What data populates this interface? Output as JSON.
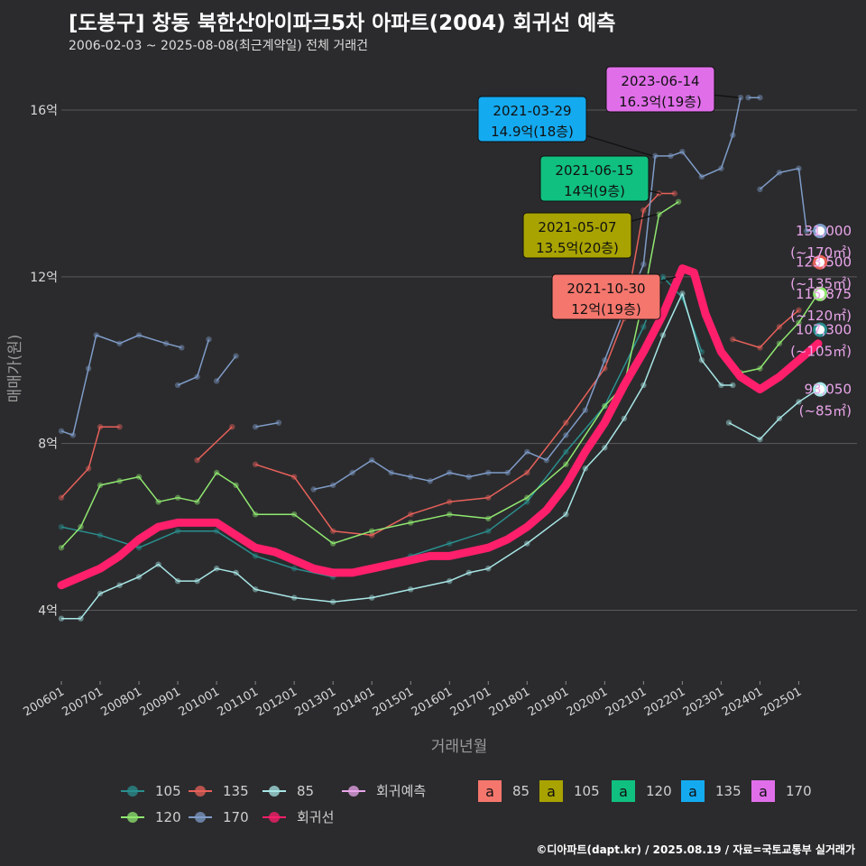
{
  "title": "[도봉구] 창동 북한산아이파크5차 아파트(2004) 회귀선 예측",
  "subtitle": "2006-02-03 ~ 2025-08-08(최근계약일) 전체 거래건",
  "caption": "©디아파트(dapt.kr) / 2025.08.19 / 자료=국토교통부 실거래가",
  "chart_data": {
    "type": "line",
    "xlabel": "거래년월",
    "ylabel": "매매가(원)",
    "x_ticks": [
      "200601",
      "200701",
      "200801",
      "200901",
      "201001",
      "201101",
      "201201",
      "201301",
      "201401",
      "201501",
      "201601",
      "201701",
      "201801",
      "201901",
      "202001",
      "202101",
      "202201",
      "202301",
      "202401",
      "202501"
    ],
    "y_ticks": [
      {
        "v": 4,
        "label": "4억"
      },
      {
        "v": 8,
        "label": "8억"
      },
      {
        "v": 12,
        "label": "12억"
      },
      {
        "v": 16,
        "label": "16억"
      }
    ],
    "xlim": [
      2006.0,
      2026.5
    ],
    "ylim": [
      2.3,
      17.3
    ],
    "grid": true,
    "colors": {
      "s105": "#2a8f8f",
      "s135": "#e8615a",
      "s85": "#a8e6e6",
      "s120": "#90e870",
      "s170": "#7f9cc8",
      "regression": "#ff1f6b",
      "forecast": "#e9a5ea"
    },
    "series": [
      {
        "name": "105",
        "color": "#2a8f8f",
        "points": [
          [
            2006.0,
            6.0
          ],
          [
            2007.0,
            5.8
          ],
          [
            2008.0,
            5.5
          ],
          [
            2009.0,
            5.9
          ],
          [
            2010.0,
            5.9
          ],
          [
            2011.0,
            5.3
          ],
          [
            2012.0,
            5.0
          ],
          [
            2013.0,
            4.8
          ],
          [
            2014.0,
            5.0
          ],
          [
            2015.0,
            5.3
          ],
          [
            2016.0,
            5.6
          ],
          [
            2017.0,
            5.9
          ],
          [
            2018.0,
            6.6
          ],
          [
            2019.0,
            7.8
          ],
          [
            2020.0,
            8.9
          ],
          [
            2021.0,
            10.8
          ],
          [
            2021.5,
            12.0
          ],
          [
            2022.0,
            11.5
          ],
          [
            2022.5,
            10.2
          ]
        ]
      },
      {
        "name": "135",
        "color": "#e8615a",
        "points": [
          [
            2006.0,
            6.7
          ],
          [
            2006.7,
            7.4
          ],
          [
            2007.0,
            8.4
          ],
          [
            2007.5,
            8.4
          ],
          [
            null,
            null
          ],
          [
            2009.5,
            7.6
          ],
          [
            2010.4,
            8.4
          ],
          [
            null,
            null
          ],
          [
            2011.0,
            7.5
          ],
          [
            2012.0,
            7.2
          ],
          [
            2013.0,
            5.9
          ],
          [
            2014.0,
            5.8
          ],
          [
            2015.0,
            6.3
          ],
          [
            2016.0,
            6.6
          ],
          [
            2017.0,
            6.7
          ],
          [
            2018.0,
            7.3
          ],
          [
            2019.0,
            8.5
          ],
          [
            2020.0,
            9.8
          ],
          [
            2020.5,
            11.0
          ],
          [
            2021.0,
            13.6
          ],
          [
            2021.4,
            14.0
          ],
          [
            2021.8,
            14.0
          ],
          [
            null,
            null
          ],
          [
            2023.3,
            10.5
          ],
          [
            2024.0,
            10.3
          ],
          [
            2024.5,
            10.8
          ],
          [
            2025.0,
            11.2
          ],
          [
            null,
            null
          ],
          [
            2025.4,
            12.3
          ],
          [
            2025.7,
            12.4
          ]
        ]
      },
      {
        "name": "85",
        "color": "#a8e6e6",
        "points": [
          [
            2006.0,
            3.8
          ],
          [
            2006.5,
            3.8
          ],
          [
            2007.0,
            4.4
          ],
          [
            2007.5,
            4.6
          ],
          [
            2008.0,
            4.8
          ],
          [
            2008.5,
            5.1
          ],
          [
            2009.0,
            4.7
          ],
          [
            2009.5,
            4.7
          ],
          [
            2010.0,
            5.0
          ],
          [
            2010.5,
            4.9
          ],
          [
            2011.0,
            4.5
          ],
          [
            2012.0,
            4.3
          ],
          [
            2013.0,
            4.2
          ],
          [
            2014.0,
            4.3
          ],
          [
            2015.0,
            4.5
          ],
          [
            2016.0,
            4.7
          ],
          [
            2016.5,
            4.9
          ],
          [
            2017.0,
            5.0
          ],
          [
            2018.0,
            5.6
          ],
          [
            2019.0,
            6.3
          ],
          [
            2019.5,
            7.4
          ],
          [
            2020.0,
            7.9
          ],
          [
            2020.5,
            8.6
          ],
          [
            2021.0,
            9.4
          ],
          [
            2021.5,
            10.6
          ],
          [
            2022.0,
            11.6
          ],
          [
            2022.5,
            10.0
          ],
          [
            2023.0,
            9.4
          ],
          [
            2023.3,
            9.4
          ],
          [
            null,
            null
          ],
          [
            2023.2,
            8.5
          ],
          [
            2024.0,
            8.1
          ],
          [
            2024.5,
            8.6
          ],
          [
            2025.0,
            9.0
          ],
          [
            2025.5,
            9.3
          ]
        ]
      },
      {
        "name": "120",
        "color": "#90e870",
        "points": [
          [
            2006.0,
            5.5
          ],
          [
            2006.5,
            6.0
          ],
          [
            2007.0,
            7.0
          ],
          [
            2007.5,
            7.1
          ],
          [
            2008.0,
            7.2
          ],
          [
            2008.5,
            6.6
          ],
          [
            2009.0,
            6.7
          ],
          [
            2009.5,
            6.6
          ],
          [
            2010.0,
            7.3
          ],
          [
            2010.5,
            7.0
          ],
          [
            2011.0,
            6.3
          ],
          [
            2012.0,
            6.3
          ],
          [
            2013.0,
            5.6
          ],
          [
            2014.0,
            5.9
          ],
          [
            2015.0,
            6.1
          ],
          [
            2016.0,
            6.3
          ],
          [
            2017.0,
            6.2
          ],
          [
            2018.0,
            6.7
          ],
          [
            2019.0,
            7.5
          ],
          [
            2020.0,
            8.9
          ],
          [
            2020.5,
            9.4
          ],
          [
            2021.0,
            11.5
          ],
          [
            2021.4,
            13.5
          ],
          [
            2021.9,
            13.8
          ],
          [
            null,
            null
          ],
          [
            2023.5,
            9.7
          ],
          [
            2024.0,
            9.8
          ],
          [
            2024.5,
            10.4
          ],
          [
            2025.0,
            10.9
          ],
          [
            2025.5,
            11.6
          ]
        ]
      },
      {
        "name": "170",
        "color": "#7f9cc8",
        "points": [
          [
            2006.0,
            8.3
          ],
          [
            2006.3,
            8.2
          ],
          [
            2006.7,
            9.8
          ],
          [
            2006.9,
            10.6
          ],
          [
            2007.5,
            10.4
          ],
          [
            2008.0,
            10.6
          ],
          [
            2008.7,
            10.4
          ],
          [
            2009.1,
            10.3
          ],
          [
            null,
            null
          ],
          [
            2009.0,
            9.4
          ],
          [
            2009.5,
            9.6
          ],
          [
            2009.8,
            10.5
          ],
          [
            null,
            null
          ],
          [
            2010.0,
            9.5
          ],
          [
            2010.5,
            10.1
          ],
          [
            null,
            null
          ],
          [
            2011.0,
            8.4
          ],
          [
            2011.6,
            8.5
          ],
          [
            null,
            null
          ],
          [
            2012.5,
            6.9
          ],
          [
            2013.0,
            7.0
          ],
          [
            2013.5,
            7.3
          ],
          [
            2014.0,
            7.6
          ],
          [
            2014.5,
            7.3
          ],
          [
            2015.0,
            7.2
          ],
          [
            2015.5,
            7.1
          ],
          [
            2016.0,
            7.3
          ],
          [
            2016.5,
            7.2
          ],
          [
            2017.0,
            7.3
          ],
          [
            2017.5,
            7.3
          ],
          [
            2018.0,
            7.8
          ],
          [
            2018.5,
            7.6
          ],
          [
            2019.0,
            8.2
          ],
          [
            2019.5,
            8.8
          ],
          [
            2020.0,
            10.0
          ],
          [
            2020.5,
            11.2
          ],
          [
            2021.0,
            12.3
          ],
          [
            2021.3,
            14.9
          ],
          [
            2021.7,
            14.9
          ],
          [
            2022.0,
            15.0
          ],
          [
            2022.5,
            14.4
          ],
          [
            2023.0,
            14.6
          ],
          [
            2023.3,
            15.4
          ],
          [
            2023.5,
            16.3
          ],
          [
            null,
            null
          ],
          [
            2023.7,
            16.3
          ],
          [
            2024.0,
            16.3
          ],
          [
            null,
            null
          ],
          [
            2024.0,
            14.1
          ],
          [
            2024.5,
            14.5
          ],
          [
            2025.0,
            14.6
          ],
          [
            2025.2,
            13.1
          ],
          [
            2025.5,
            13.1
          ]
        ]
      },
      {
        "name": "회귀선",
        "color": "#ff1f6b",
        "regression": true,
        "points": [
          [
            2006.0,
            4.6
          ],
          [
            2006.5,
            4.8
          ],
          [
            2007.0,
            5.0
          ],
          [
            2007.5,
            5.3
          ],
          [
            2008.0,
            5.7
          ],
          [
            2008.5,
            6.0
          ],
          [
            2009.0,
            6.1
          ],
          [
            2009.5,
            6.1
          ],
          [
            2010.0,
            6.1
          ],
          [
            2010.5,
            5.8
          ],
          [
            2011.0,
            5.5
          ],
          [
            2011.5,
            5.4
          ],
          [
            2012.0,
            5.2
          ],
          [
            2012.5,
            5.0
          ],
          [
            2013.0,
            4.9
          ],
          [
            2013.5,
            4.9
          ],
          [
            2014.0,
            5.0
          ],
          [
            2014.5,
            5.1
          ],
          [
            2015.0,
            5.2
          ],
          [
            2015.5,
            5.3
          ],
          [
            2016.0,
            5.3
          ],
          [
            2016.5,
            5.4
          ],
          [
            2017.0,
            5.5
          ],
          [
            2017.5,
            5.7
          ],
          [
            2018.0,
            6.0
          ],
          [
            2018.5,
            6.4
          ],
          [
            2019.0,
            7.0
          ],
          [
            2019.5,
            7.8
          ],
          [
            2020.0,
            8.5
          ],
          [
            2020.5,
            9.4
          ],
          [
            2021.0,
            10.2
          ],
          [
            2021.5,
            11.1
          ],
          [
            2022.0,
            12.2
          ],
          [
            2022.3,
            12.1
          ],
          [
            2022.6,
            11.1
          ],
          [
            2023.0,
            10.2
          ],
          [
            2023.5,
            9.6
          ],
          [
            2024.0,
            9.3
          ],
          [
            2024.5,
            9.6
          ],
          [
            2025.0,
            10.0
          ],
          [
            2025.5,
            10.4
          ]
        ]
      }
    ],
    "forecast_points": [
      {
        "x": 2025.55,
        "y": 13.1,
        "color": "#7f9cc8"
      },
      {
        "x": 2025.55,
        "y": 12.35,
        "color": "#e8615a"
      },
      {
        "x": 2025.55,
        "y": 11.59,
        "color": "#90e870"
      },
      {
        "x": 2025.55,
        "y": 10.73,
        "color": "#2a8f8f"
      },
      {
        "x": 2025.55,
        "y": 9.3,
        "color": "#a8e6e6"
      }
    ],
    "forecast_labels": [
      {
        "value": "131,000",
        "unit": "(~170㎡)",
        "y": 13.1
      },
      {
        "value": "123,500",
        "unit": "(~135㎡)",
        "y": 12.35
      },
      {
        "value": "115,875",
        "unit": "(~120㎡)",
        "y": 11.59
      },
      {
        "value": "107,300",
        "unit": "(~105㎡)",
        "y": 10.73
      },
      {
        "value": "93,050",
        "unit": "(~85㎡)",
        "y": 9.3
      }
    ],
    "annotations": [
      {
        "date": "2023-06-14",
        "price": "16.3억(19층)",
        "color": "#e06ee9",
        "x": 2023.45,
        "y": 16.3
      },
      {
        "date": "2021-03-29",
        "price": "14.9억(18층)",
        "color": "#14aaf0",
        "x": 2021.24,
        "y": 14.9
      },
      {
        "date": "2021-06-15",
        "price": "14억(9층)",
        "color": "#10c080",
        "x": 2021.45,
        "y": 14.0
      },
      {
        "date": "2021-05-07",
        "price": "13.5억(20층)",
        "color": "#a8a300",
        "x": 2021.35,
        "y": 13.5
      },
      {
        "date": "2021-10-30",
        "price": "12억(19층)",
        "color": "#f4766d",
        "x": 2021.83,
        "y": 12.0
      }
    ],
    "legend_lines": [
      {
        "label": "105",
        "color": "#2a8f8f"
      },
      {
        "label": "135",
        "color": "#e8615a"
      },
      {
        "label": "85",
        "color": "#a8e6e6"
      },
      {
        "label": "회귀예측",
        "color": "#e9a5ea"
      },
      {
        "label": "120",
        "color": "#90e870"
      },
      {
        "label": "170",
        "color": "#7f9cc8"
      },
      {
        "label": "회귀선",
        "color": "#ff1f6b"
      }
    ],
    "legend_boxes": [
      {
        "glyph": "a",
        "label": "85",
        "color": "#f4766d"
      },
      {
        "glyph": "a",
        "label": "105",
        "color": "#a8a300"
      },
      {
        "glyph": "a",
        "label": "120",
        "color": "#10c080"
      },
      {
        "glyph": "a",
        "label": "135",
        "color": "#14aaf0"
      },
      {
        "glyph": "a",
        "label": "170",
        "color": "#e06ee9"
      }
    ]
  }
}
